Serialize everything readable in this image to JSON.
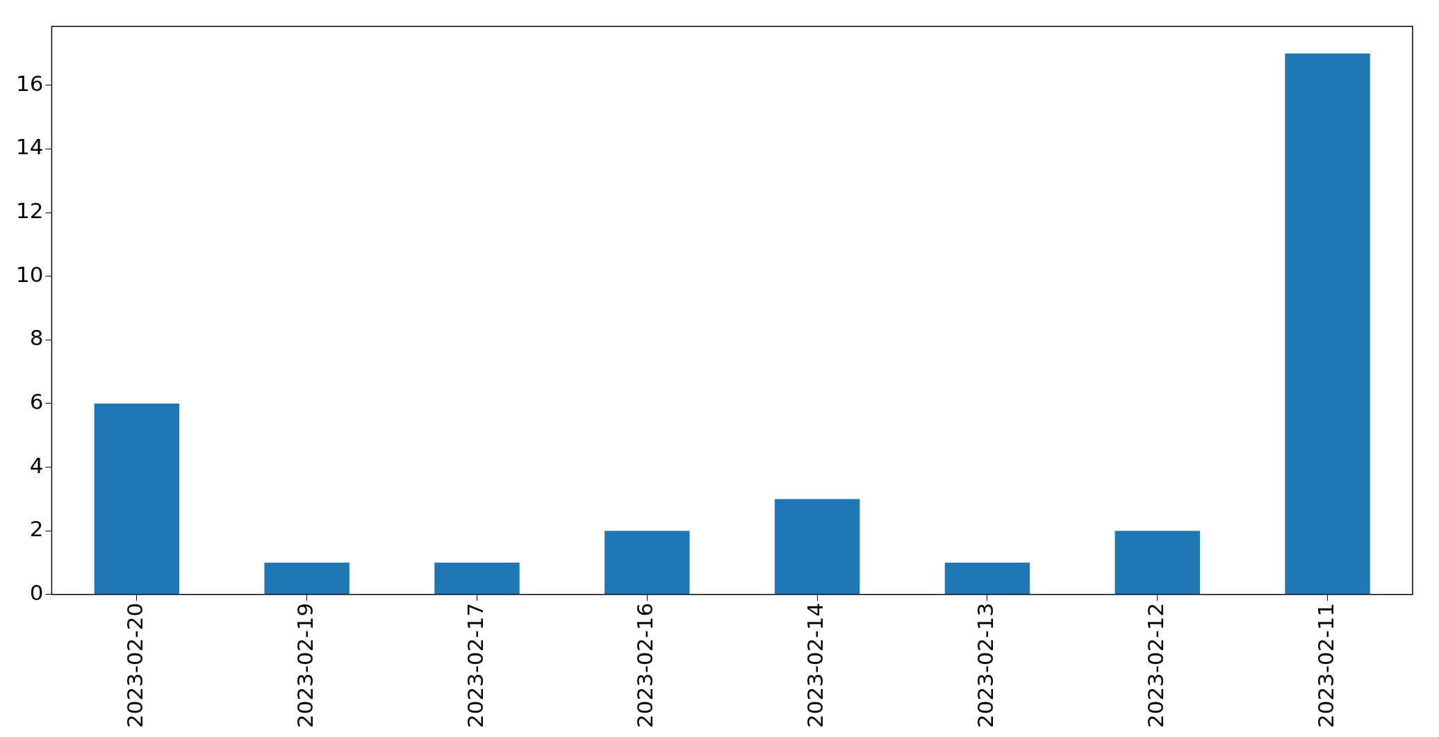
{
  "chart_data": {
    "type": "bar",
    "categories": [
      "2023-02-20",
      "2023-02-19",
      "2023-02-17",
      "2023-02-16",
      "2023-02-14",
      "2023-02-13",
      "2023-02-12",
      "2023-02-11"
    ],
    "values": [
      6,
      1,
      1,
      2,
      3,
      1,
      2,
      17
    ],
    "color": "#1f77b4",
    "ylim": [
      0,
      17.85
    ],
    "yticks": [
      0,
      2,
      4,
      6,
      8,
      10,
      12,
      14,
      16
    ],
    "grid": false,
    "legend": false
  }
}
